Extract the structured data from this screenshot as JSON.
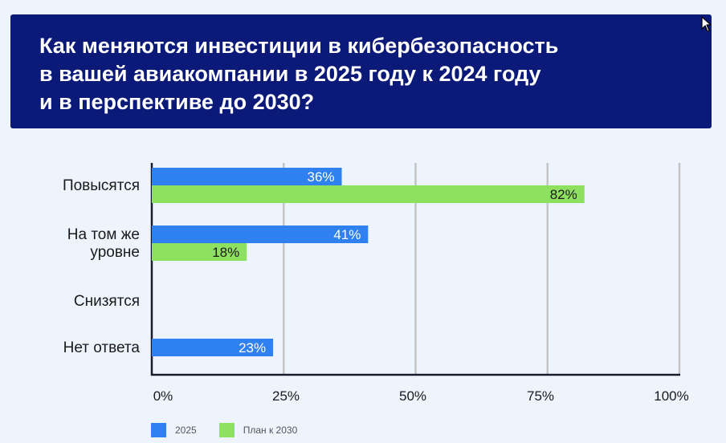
{
  "title": "Как меняются инвестиции в кибербезопасность\nв вашей авиакомпании в 2025 году к 2024 году\nи в перспективе до 2030?",
  "colors": {
    "title_bg": "#0b1a78",
    "series_2025": "#2f80f0",
    "series_2030": "#8ee060"
  },
  "chart_data": {
    "type": "bar",
    "orientation": "horizontal",
    "categories": [
      "Повысятся",
      "На том же\nуровне",
      "Снизятся",
      "Нет ответа"
    ],
    "series": [
      {
        "name": "2025",
        "values": [
          36,
          41,
          0,
          23
        ],
        "labels": [
          "36%",
          "41%",
          "",
          "23%"
        ],
        "color": "#2f80f0"
      },
      {
        "name": "План к 2030",
        "values": [
          82,
          18,
          0,
          0
        ],
        "labels": [
          "82%",
          "18%",
          "",
          ""
        ],
        "color": "#8ee060"
      }
    ],
    "xlim": [
      0,
      100
    ],
    "xticks": [
      0,
      25,
      50,
      75,
      100
    ],
    "xtick_labels": [
      "0%",
      "25%",
      "50%",
      "75%",
      "100%"
    ],
    "grid": true,
    "legend": "bottom-left"
  }
}
